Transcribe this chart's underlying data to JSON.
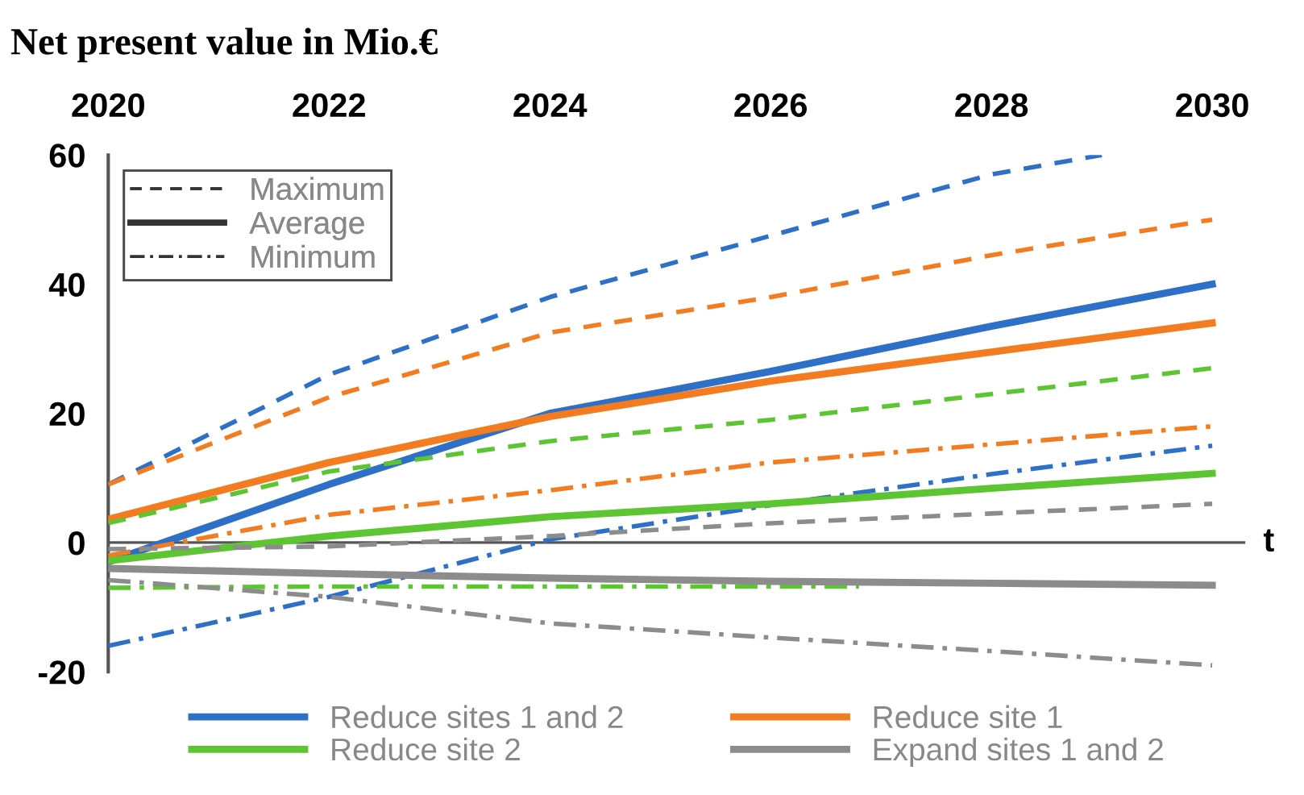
{
  "chart_data": {
    "type": "line",
    "title": "Net present value in Mio.€",
    "xlim": [
      2020,
      2030.3
    ],
    "xticks": [
      2020,
      2022,
      2024,
      2026,
      2028,
      2030
    ],
    "ylim": [
      -20,
      60
    ],
    "yticks": [
      -20,
      0,
      20,
      40,
      60
    ],
    "grid": false,
    "legend": "bottom",
    "marker": "none",
    "ref_lines": [
      {
        "axis": "y",
        "value": 0,
        "label": "t",
        "color": "#555555",
        "line_style": "solid"
      }
    ],
    "annotations": [
      "Maximum",
      "Average",
      "Minimum"
    ],
    "series": [
      {
        "color": "#2e6fc7",
        "line_style": "dashed",
        "x": [
          2020,
          2022,
          2024,
          2026,
          2028,
          2029
        ],
        "values": [
          9,
          26,
          38,
          47.5,
          57,
          60
        ]
      },
      {
        "name": "Reduce sites 1 and 2",
        "color": "#2e6fc7",
        "line_style": "solid",
        "x": [
          2020,
          2022,
          2024,
          2026,
          2028,
          2030
        ],
        "values": [
          -3,
          9,
          20,
          26.5,
          33.5,
          40
        ]
      },
      {
        "color": "#2e6fc7",
        "line_style": "dashdot",
        "x": [
          2020,
          2022,
          2024,
          2026,
          2028,
          2030
        ],
        "values": [
          -16,
          -8.4,
          0.5,
          5.8,
          10.6,
          15
        ]
      },
      {
        "color": "#f47c20",
        "line_style": "dashed",
        "x": [
          2020,
          2022,
          2024,
          2026,
          2028,
          2030
        ],
        "values": [
          9,
          22.5,
          32.5,
          38,
          44.5,
          50
        ]
      },
      {
        "name": "Reduce site 1",
        "color": "#f47c20",
        "line_style": "solid",
        "x": [
          2020,
          2022,
          2024,
          2026,
          2028,
          2030
        ],
        "values": [
          3.6,
          12.4,
          19.5,
          25,
          29.5,
          34
        ]
      },
      {
        "color": "#f47c20",
        "line_style": "dashdot",
        "x": [
          2020,
          2022,
          2024,
          2026,
          2028,
          2030
        ],
        "values": [
          -2,
          4.3,
          8.1,
          12.4,
          15.2,
          18
        ]
      },
      {
        "color": "#5cc531",
        "line_style": "dashed",
        "x": [
          2020,
          2022,
          2024,
          2026,
          2028,
          2030
        ],
        "values": [
          3,
          11,
          15.7,
          19,
          23,
          27
        ]
      },
      {
        "name": "Reduce site 2",
        "color": "#5cc531",
        "line_style": "solid",
        "x": [
          2020,
          2022,
          2024,
          2026,
          2028,
          2030
        ],
        "values": [
          -2.8,
          1,
          4,
          6,
          8.4,
          10.7
        ]
      },
      {
        "color": "#5cc531",
        "line_style": "dashdot",
        "x": [
          2020,
          2022,
          2024,
          2026.8
        ],
        "values": [
          -7,
          -6.8,
          -6.8,
          -6.8
        ]
      },
      {
        "color": "#8c8c8c",
        "line_style": "dashed",
        "x": [
          2020,
          2022,
          2024,
          2026,
          2028,
          2030
        ],
        "values": [
          -1,
          -0.6,
          1,
          3,
          4.5,
          6
        ]
      },
      {
        "name": "Expand sites 1 and 2",
        "color": "#8c8c8c",
        "line_style": "solid",
        "x": [
          2020,
          2022,
          2024,
          2026,
          2028,
          2030
        ],
        "values": [
          -4,
          -4.8,
          -5.5,
          -6,
          -6.3,
          -6.6
        ]
      },
      {
        "color": "#8c8c8c",
        "line_style": "dashdot",
        "x": [
          2020,
          2022,
          2024,
          2026,
          2028,
          2030
        ],
        "values": [
          -5.8,
          -8.4,
          -12.5,
          -14.7,
          -16.8,
          -19
        ]
      }
    ]
  }
}
